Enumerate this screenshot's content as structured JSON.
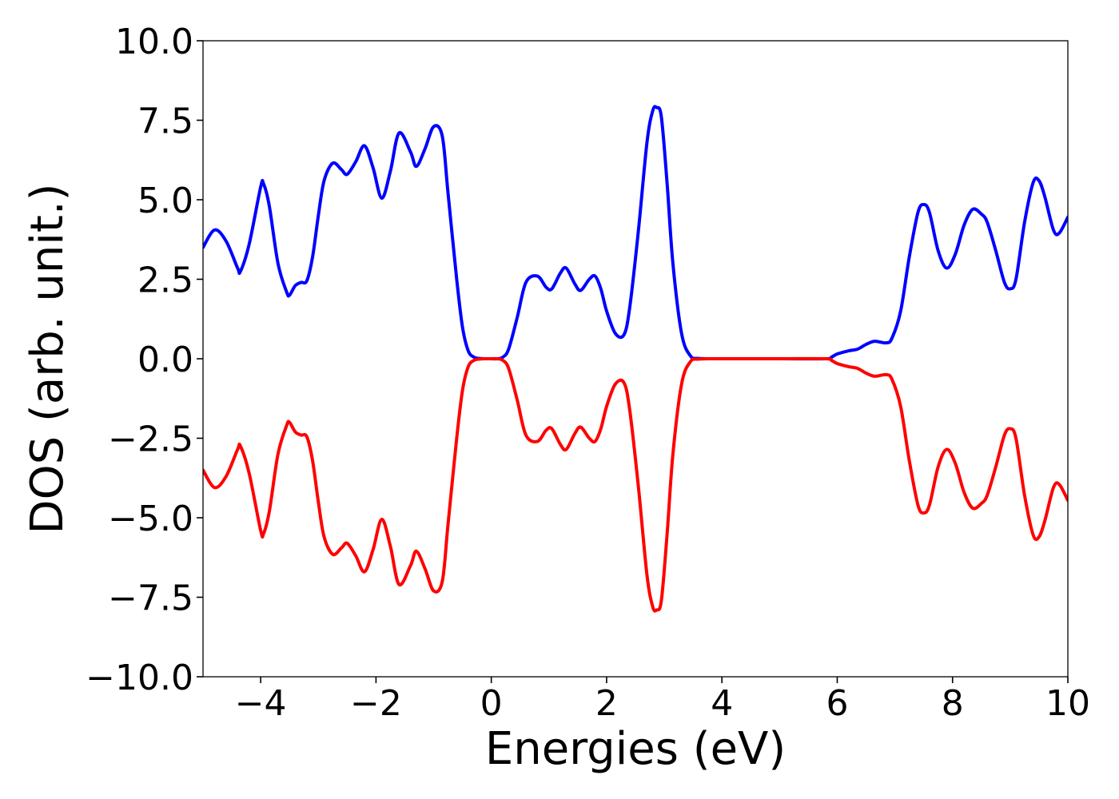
{
  "chart_data": {
    "type": "line",
    "title": "",
    "xlabel": "Energies (eV)",
    "ylabel": "DOS (arb. unit.)",
    "xlim": [
      -5,
      10
    ],
    "ylim": [
      -10,
      10
    ],
    "x_ticks": [
      -4,
      -2,
      0,
      2,
      4,
      6,
      8,
      10
    ],
    "x_tick_labels": [
      "−4",
      "−2",
      "0",
      "2",
      "4",
      "6",
      "8",
      "10"
    ],
    "y_ticks": [
      -10,
      -7.5,
      -5,
      -2.5,
      0,
      2.5,
      5,
      7.5,
      10
    ],
    "y_tick_labels": [
      "−10.0",
      "−7.5",
      "−5.0",
      "−2.5",
      "0.0",
      "2.5",
      "5.0",
      "7.5",
      "10.0"
    ],
    "grid": false,
    "legend": "none",
    "series": [
      {
        "color": "#0000ff",
        "x": [
          -5.0,
          -4.8,
          -4.6,
          -4.4,
          -4.35,
          -4.2,
          -4.0,
          -3.95,
          -3.85,
          -3.7,
          -3.55,
          -3.5,
          -3.4,
          -3.3,
          -3.2,
          -3.1,
          -3.0,
          -2.9,
          -2.75,
          -2.6,
          -2.5,
          -2.35,
          -2.2,
          -2.05,
          -1.9,
          -1.75,
          -1.6,
          -1.4,
          -1.3,
          -1.15,
          -1.0,
          -0.85,
          -0.75,
          -0.6,
          -0.5,
          -0.4,
          -0.3,
          -0.2,
          -0.1,
          0.0,
          0.1,
          0.2,
          0.3,
          0.45,
          0.6,
          0.8,
          0.95,
          1.05,
          1.2,
          1.3,
          1.45,
          1.55,
          1.7,
          1.8,
          1.9,
          2.0,
          2.15,
          2.3,
          2.4,
          2.55,
          2.7,
          2.8,
          2.87,
          2.95,
          3.05,
          3.15,
          3.3,
          3.45,
          3.6,
          4.0,
          5.0,
          5.8,
          5.9,
          6.0,
          6.2,
          6.35,
          6.5,
          6.65,
          6.85,
          6.95,
          7.1,
          7.25,
          7.4,
          7.5,
          7.6,
          7.75,
          7.9,
          8.05,
          8.2,
          8.35,
          8.5,
          8.6,
          8.75,
          8.9,
          9.0,
          9.1,
          9.25,
          9.4,
          9.5,
          9.6,
          9.75,
          9.85,
          10.0
        ],
        "y": [
          3.5,
          4.05,
          3.7,
          2.85,
          2.75,
          3.6,
          5.4,
          5.5,
          4.8,
          3.0,
          2.1,
          2.0,
          2.3,
          2.4,
          2.45,
          3.2,
          4.5,
          5.6,
          6.15,
          5.95,
          5.8,
          6.2,
          6.7,
          6.0,
          5.05,
          5.9,
          7.1,
          6.5,
          6.05,
          6.6,
          7.3,
          7.0,
          5.2,
          2.5,
          1.0,
          0.25,
          0.05,
          0.01,
          0.0,
          0.0,
          0.0,
          0.05,
          0.3,
          1.3,
          2.4,
          2.6,
          2.25,
          2.2,
          2.7,
          2.85,
          2.35,
          2.15,
          2.5,
          2.6,
          2.2,
          1.5,
          0.8,
          0.75,
          1.6,
          4.0,
          6.8,
          7.8,
          7.9,
          7.6,
          5.5,
          3.0,
          0.8,
          0.1,
          0.01,
          0.0,
          0.0,
          0.0,
          0.05,
          0.15,
          0.25,
          0.3,
          0.45,
          0.55,
          0.5,
          0.65,
          1.5,
          3.2,
          4.6,
          4.85,
          4.6,
          3.4,
          2.85,
          3.3,
          4.2,
          4.7,
          4.55,
          4.3,
          3.4,
          2.4,
          2.2,
          2.5,
          4.3,
          5.55,
          5.6,
          5.1,
          4.05,
          3.95,
          4.45
        ]
      },
      {
        "color": "#ff0000",
        "x": [
          -5.0,
          -4.8,
          -4.6,
          -4.4,
          -4.35,
          -4.2,
          -4.0,
          -3.95,
          -3.85,
          -3.7,
          -3.55,
          -3.5,
          -3.4,
          -3.3,
          -3.2,
          -3.1,
          -3.0,
          -2.9,
          -2.75,
          -2.6,
          -2.5,
          -2.35,
          -2.2,
          -2.05,
          -1.9,
          -1.75,
          -1.6,
          -1.4,
          -1.3,
          -1.15,
          -1.0,
          -0.85,
          -0.75,
          -0.6,
          -0.5,
          -0.4,
          -0.3,
          -0.2,
          -0.1,
          0.0,
          0.1,
          0.2,
          0.3,
          0.45,
          0.6,
          0.8,
          0.95,
          1.05,
          1.2,
          1.3,
          1.45,
          1.55,
          1.7,
          1.8,
          1.9,
          2.0,
          2.15,
          2.3,
          2.4,
          2.55,
          2.7,
          2.8,
          2.87,
          2.95,
          3.05,
          3.15,
          3.3,
          3.45,
          3.6,
          4.0,
          5.0,
          5.8,
          5.9,
          6.0,
          6.2,
          6.35,
          6.5,
          6.65,
          6.85,
          6.95,
          7.1,
          7.25,
          7.4,
          7.5,
          7.6,
          7.75,
          7.9,
          8.05,
          8.2,
          8.35,
          8.5,
          8.6,
          8.75,
          8.9,
          9.0,
          9.1,
          9.25,
          9.4,
          9.5,
          9.6,
          9.75,
          9.85,
          10.0
        ],
        "y": [
          -3.5,
          -4.05,
          -3.7,
          -2.85,
          -2.75,
          -3.6,
          -5.4,
          -5.5,
          -4.8,
          -3.0,
          -2.1,
          -2.0,
          -2.3,
          -2.4,
          -2.45,
          -3.2,
          -4.5,
          -5.6,
          -6.15,
          -5.95,
          -5.8,
          -6.2,
          -6.7,
          -6.0,
          -5.05,
          -5.9,
          -7.1,
          -6.5,
          -6.05,
          -6.6,
          -7.3,
          -7.0,
          -5.2,
          -2.5,
          -1.0,
          -0.25,
          -0.05,
          -0.01,
          0.0,
          0.0,
          0.0,
          -0.05,
          -0.3,
          -1.3,
          -2.4,
          -2.6,
          -2.25,
          -2.2,
          -2.7,
          -2.85,
          -2.35,
          -2.15,
          -2.5,
          -2.6,
          -2.2,
          -1.5,
          -0.8,
          -0.75,
          -1.6,
          -4.0,
          -6.8,
          -7.8,
          -7.9,
          -7.6,
          -5.5,
          -3.0,
          -0.8,
          -0.1,
          -0.01,
          0.0,
          0.0,
          0.0,
          -0.05,
          -0.15,
          -0.25,
          -0.3,
          -0.45,
          -0.55,
          -0.5,
          -0.65,
          -1.5,
          -3.2,
          -4.6,
          -4.85,
          -4.6,
          -3.4,
          -2.85,
          -3.3,
          -4.2,
          -4.7,
          -4.55,
          -4.3,
          -3.4,
          -2.4,
          -2.2,
          -2.5,
          -4.3,
          -5.55,
          -5.6,
          -5.1,
          -4.05,
          -3.95,
          -4.45
        ]
      }
    ]
  }
}
